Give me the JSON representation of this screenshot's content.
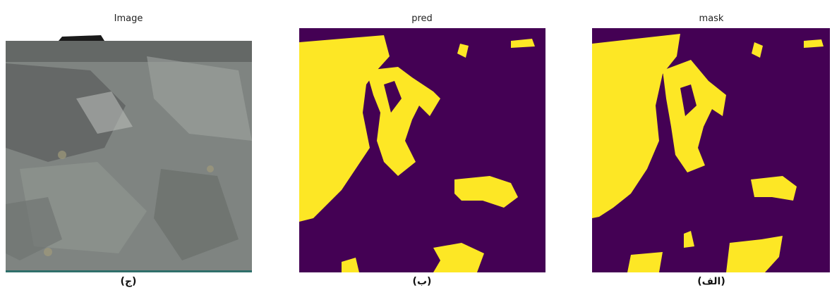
{
  "panels": [
    {
      "title": "Image",
      "caption": "(ج)"
    },
    {
      "title": "pred",
      "caption": "(ب)"
    },
    {
      "title": "mask",
      "caption": "(الف)"
    }
  ]
}
